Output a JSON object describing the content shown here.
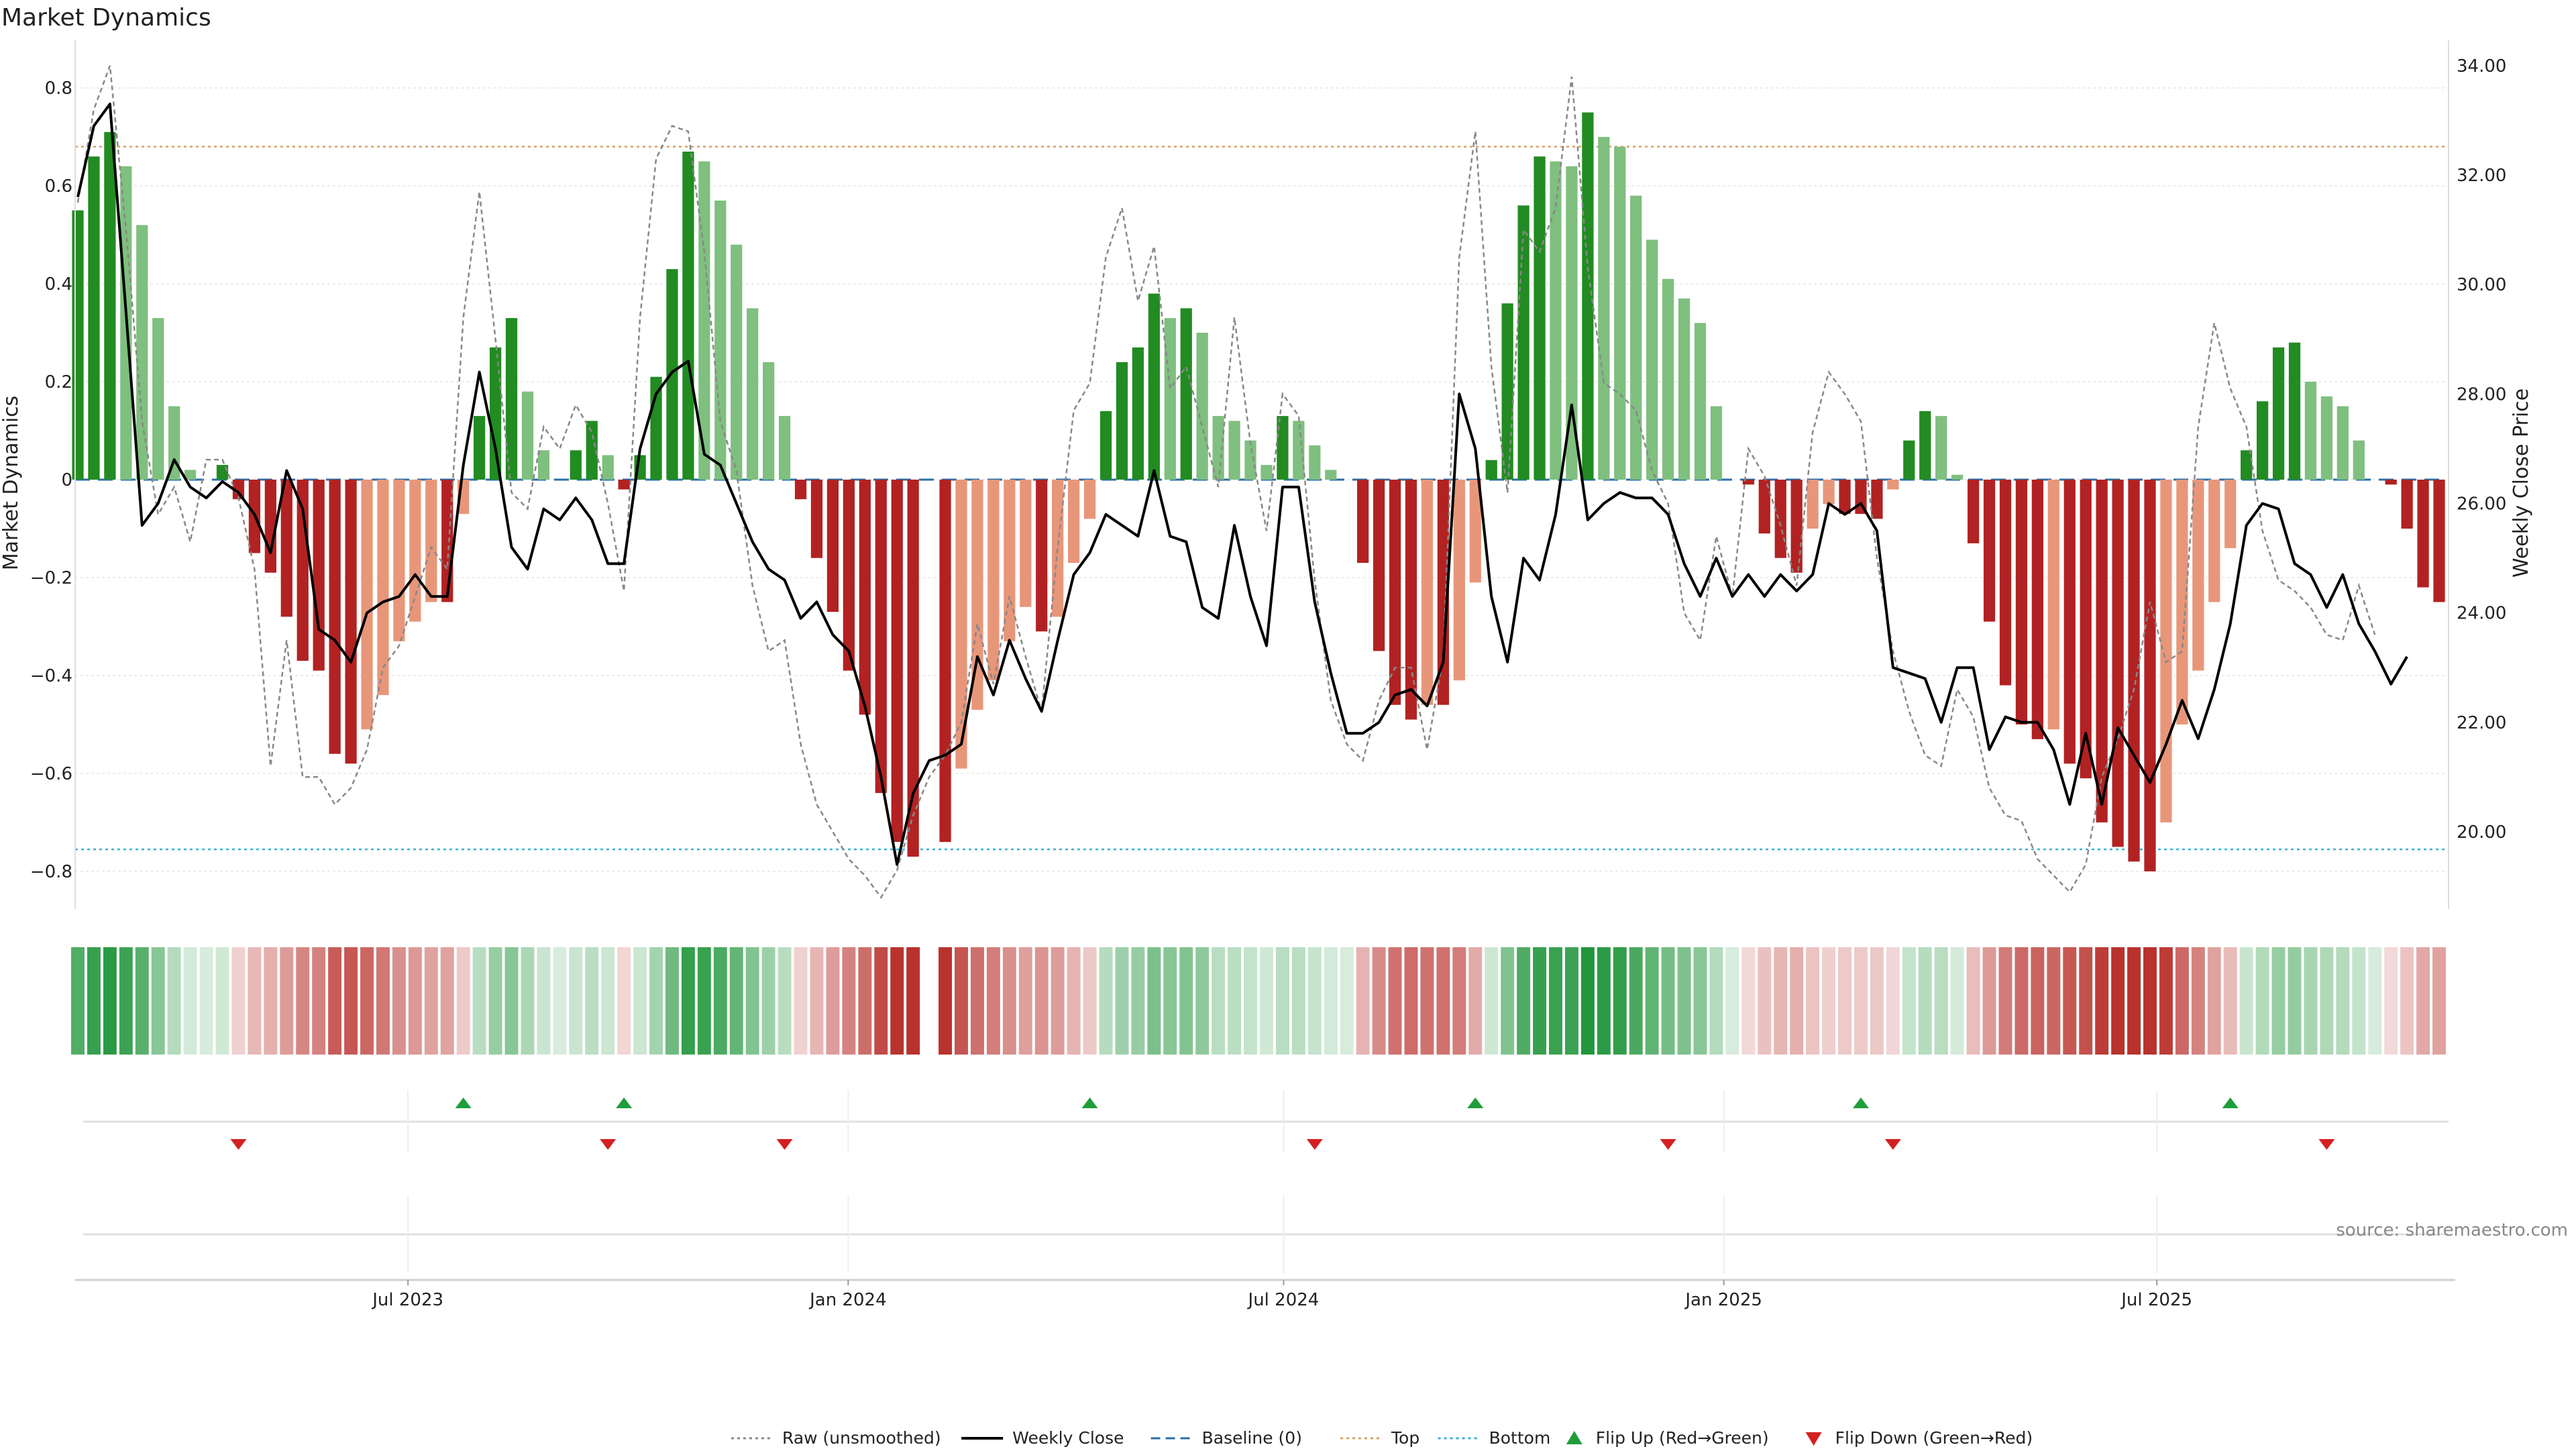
{
  "chart_data": {
    "type": "bar",
    "title": "Market Dynamics",
    "ylabel": "Market Dynamics",
    "y2label": "Weekly Close Price",
    "ylim": [
      -0.87,
      0.87
    ],
    "y2lim": [
      18.65,
      34.22
    ],
    "yticks": [
      "0.8",
      "0.6",
      "0.4",
      "0.2",
      "0",
      "−0.2",
      "−0.4",
      "−0.6",
      "−0.8"
    ],
    "y2ticks": [
      "34.00",
      "32.00",
      "30.00",
      "28.00",
      "26.00",
      "24.00",
      "22.00",
      "20.00"
    ],
    "xticks": [
      "Jul 2023",
      "Jan 2024",
      "Jul 2024",
      "Jan 2025",
      "Jul 2025"
    ],
    "x_start": "2023-02-13",
    "x_end": "2025-10-27",
    "top_threshold": 0.68,
    "bottom_threshold": -0.755,
    "baseline": 0,
    "source": "source: sharemaestro.com",
    "series": [
      {
        "name": "Market Dynamics",
        "values": [
          0.55,
          0.66,
          0.71,
          0.64,
          0.52,
          0.33,
          0.15,
          0.02,
          0.0,
          0.03,
          -0.04,
          -0.15,
          -0.19,
          -0.28,
          -0.37,
          -0.39,
          -0.56,
          -0.58,
          -0.51,
          -0.44,
          -0.33,
          -0.29,
          -0.25,
          -0.25,
          -0.07,
          0.13,
          0.27,
          0.33,
          0.18,
          0.06,
          0.0,
          0.06,
          0.12,
          0.05,
          -0.02,
          0.05,
          0.21,
          0.43,
          0.67,
          0.65,
          0.57,
          0.48,
          0.35,
          0.24,
          0.13,
          -0.04,
          -0.16,
          -0.27,
          -0.39,
          -0.48,
          -0.64,
          -0.74,
          -0.77,
          0.0,
          -0.74,
          -0.59,
          -0.47,
          -0.41,
          -0.33,
          -0.26,
          -0.31,
          -0.28,
          -0.17,
          -0.08,
          0.14,
          0.24,
          0.27,
          0.38,
          0.33,
          0.35,
          0.3,
          0.13,
          0.12,
          0.08,
          0.03,
          0.13,
          0.12,
          0.07,
          0.02,
          0.0,
          -0.17,
          -0.35,
          -0.46,
          -0.49,
          -0.46,
          -0.46,
          -0.41,
          -0.21,
          0.04,
          0.36,
          0.56,
          0.66,
          0.65,
          0.64,
          0.75,
          0.7,
          0.68,
          0.58,
          0.49,
          0.41,
          0.37,
          0.32,
          0.15,
          0.0,
          -0.01,
          -0.11,
          -0.16,
          -0.19,
          -0.1,
          -0.05,
          -0.07,
          -0.07,
          -0.08,
          -0.02,
          0.08,
          0.14,
          0.13,
          0.01,
          -0.13,
          -0.29,
          -0.42,
          -0.5,
          -0.53,
          -0.51,
          -0.58,
          -0.61,
          -0.7,
          -0.75,
          -0.78,
          -0.8,
          -0.7,
          -0.5,
          -0.39,
          -0.25,
          -0.14,
          0.06,
          0.16,
          0.27,
          0.28,
          0.2,
          0.17,
          0.15,
          0.08,
          0.0,
          -0.01,
          -0.1,
          -0.22,
          -0.25
        ]
      },
      {
        "name": "Weekly Close",
        "values": [
          31.6,
          32.9,
          33.3,
          29.5,
          25.6,
          26.0,
          26.8,
          26.3,
          26.1,
          26.4,
          26.2,
          25.8,
          25.1,
          26.6,
          25.9,
          23.7,
          23.5,
          23.1,
          24.0,
          24.2,
          24.3,
          24.7,
          24.3,
          24.3,
          26.7,
          28.4,
          27.0,
          25.2,
          24.8,
          25.9,
          25.7,
          26.1,
          25.7,
          24.9,
          24.9,
          27.0,
          28.0,
          28.4,
          28.6,
          26.9,
          26.7,
          26.0,
          25.3,
          24.8,
          24.6,
          23.9,
          24.2,
          23.6,
          23.3,
          22.3,
          21.0,
          19.4,
          20.7,
          21.3,
          21.4,
          21.6,
          23.2,
          22.5,
          23.5,
          22.8,
          22.2,
          23.5,
          24.7,
          25.1,
          25.8,
          25.6,
          25.4,
          26.6,
          25.4,
          25.3,
          24.1,
          23.9,
          25.6,
          24.3,
          23.4,
          26.3,
          26.3,
          24.2,
          22.9,
          21.8,
          21.8,
          22.0,
          22.5,
          22.6,
          22.3,
          23.1,
          28.0,
          27.0,
          24.3,
          23.1,
          25.0,
          24.6,
          25.8,
          27.8,
          25.7,
          26.0,
          26.2,
          26.1,
          26.1,
          25.8,
          24.9,
          24.3,
          25.0,
          24.3,
          24.7,
          24.3,
          24.7,
          24.4,
          24.7,
          26.0,
          25.8,
          26.0,
          25.5,
          23.0,
          22.9,
          22.8,
          22.0,
          23.0,
          23.0,
          21.5,
          22.1,
          22.0,
          22.0,
          21.5,
          20.5,
          21.8,
          20.5,
          21.9,
          21.4,
          20.9,
          21.6,
          22.4,
          21.7,
          22.6,
          23.8,
          25.6,
          26.0,
          25.9,
          24.9,
          24.7,
          24.1,
          24.7,
          23.8,
          23.3,
          22.7,
          23.2
        ],
        "color": "#000000"
      },
      {
        "name": "Raw (unsmoothed)",
        "values": [
          31.5,
          33.2,
          34.0,
          31.0,
          27.5,
          25.8,
          26.3,
          25.3,
          26.8,
          26.8,
          26.1,
          24.8,
          21.2,
          23.5,
          21.0,
          21.0,
          20.5,
          20.8,
          21.5,
          23.0,
          23.4,
          24.3,
          25.2,
          24.8,
          29.4,
          31.7,
          29.0,
          26.2,
          25.9,
          27.4,
          27.0,
          27.8,
          27.3,
          26.0,
          24.4,
          29.4,
          32.3,
          32.9,
          32.8,
          30.6,
          27.5,
          26.6,
          24.5,
          23.3,
          23.5,
          21.6,
          20.5,
          20.0,
          19.5,
          19.2,
          18.8,
          19.3,
          20.3,
          21.0,
          21.4,
          22.0,
          23.8,
          22.7,
          24.3,
          23.2,
          22.2,
          25.2,
          27.7,
          28.2,
          30.5,
          31.4,
          29.7,
          30.7,
          28.1,
          28.5,
          27.4,
          26.3,
          29.4,
          27.1,
          25.5,
          28.0,
          27.6,
          24.6,
          22.4,
          21.6,
          21.3,
          22.4,
          23.0,
          23.0,
          21.5,
          23.2,
          30.5,
          32.8,
          28.5,
          26.2,
          31.0,
          30.6,
          31.4,
          33.8,
          30.3,
          28.2,
          28.0,
          27.7,
          26.6,
          26.0,
          24.0,
          23.5,
          25.4,
          24.3,
          27.0,
          26.5,
          25.6,
          24.5,
          27.3,
          28.4,
          28.0,
          27.5,
          25.0,
          23.3,
          22.2,
          21.4,
          21.2,
          22.6,
          22.1,
          20.8,
          20.3,
          20.2,
          19.5,
          19.2,
          18.9,
          19.4,
          21.0,
          21.7,
          22.6,
          24.2,
          23.1,
          23.3,
          27.4,
          29.3,
          28.1,
          27.4,
          25.5,
          24.6,
          24.4,
          24.1,
          23.6,
          23.5,
          24.5,
          23.6
        ],
        "color": "#888888"
      }
    ],
    "flip_up_weeks": [
      24,
      34,
      63,
      87,
      111,
      134
    ],
    "flip_down_weeks": [
      10,
      33,
      44,
      77,
      99,
      113,
      140
    ],
    "bar_colors": {
      "rising_positive": "#228B22",
      "falling_positive": "#7FBF7F",
      "falling_negative": "#B22222",
      "rising_negative": "#E8967A"
    },
    "markers": {
      "up_color": "#1e9e3a",
      "down_color": "#d42020"
    },
    "line_colors": {
      "baseline": "#2a6fa8",
      "top": "#d8a060",
      "bottom": "#38b0d8"
    }
  },
  "legend": [
    {
      "label": "Raw (unsmoothed)",
      "style": "dotted",
      "color": "#888888"
    },
    {
      "label": "Weekly Close",
      "style": "solid",
      "color": "#000000"
    },
    {
      "label": "Baseline (0)",
      "style": "dashed",
      "color": "#2a6fa8"
    },
    {
      "label": "Top",
      "style": "dotted",
      "color": "#d8a060"
    },
    {
      "label": "Bottom",
      "style": "dotted",
      "color": "#38b0d8"
    },
    {
      "label": "Flip Up (Red→Green)",
      "style": "tri-up",
      "color": "#1e9e3a"
    },
    {
      "label": "Flip Down (Green→Red)",
      "style": "tri-down",
      "color": "#d42020"
    }
  ]
}
